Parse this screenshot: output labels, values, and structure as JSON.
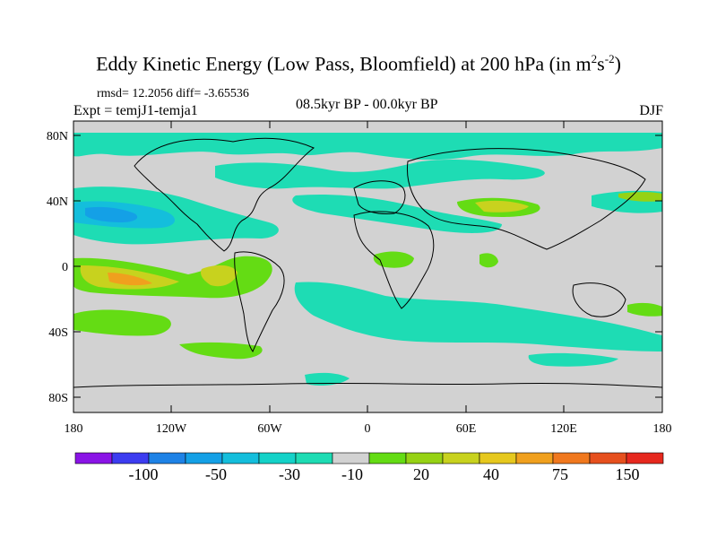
{
  "title": {
    "main": "Eddy Kinetic Energy (Low Pass, Bloomfield) at 200 hPa (in m",
    "sup1": "2",
    "mid": "s",
    "sup2": "-2",
    "end": ")"
  },
  "stats": "rmsd= 12.2056 diff= -3.65536",
  "experiment": "Expt = temjJ1-temja1",
  "period": "08.5kyr BP - 00.0kyr BP",
  "season": "DJF",
  "axes": {
    "lat_ticks": [
      "80N",
      "40N",
      "0",
      "40S",
      "80S"
    ],
    "lon_ticks": [
      "180",
      "120W",
      "60W",
      "0",
      "60E",
      "120E",
      "180"
    ]
  },
  "colorbar": {
    "labels": [
      "-100",
      "-50",
      "-30",
      "-10",
      "20",
      "40",
      "75",
      "150"
    ],
    "colors": [
      "#8a14e6",
      "#3c3cf0",
      "#1e82e6",
      "#14a0e6",
      "#14bedc",
      "#14d2c8",
      "#1edcb4",
      "#d2d2d2",
      "#64dc14",
      "#96d214",
      "#c8d21e",
      "#e6c81e",
      "#f0a01e",
      "#f0781e",
      "#e6501e",
      "#e6281e"
    ]
  },
  "colors": {
    "land_outline": "#000000",
    "missing": "#d2d2d2"
  }
}
